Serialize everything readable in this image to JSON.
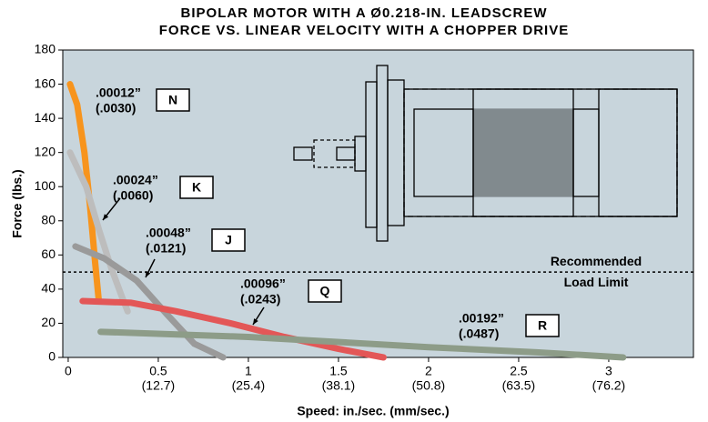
{
  "chart_data": {
    "type": "line",
    "title_lines": [
      "BIPOLAR MOTOR WITH A Ø0.218-IN. LEADSCREW",
      "FORCE VS. LINEAR VELOCITY WITH A CHOPPER DRIVE"
    ],
    "x_label": "Speed:  in./sec.  (mm/sec.)",
    "y_label": "Force (lbs.)",
    "xlim": [
      -0.03,
      3.47
    ],
    "ylim": [
      0,
      180
    ],
    "xticks": [
      0,
      0.5,
      1,
      1.5,
      2,
      2.5,
      3
    ],
    "xtick_mm_labels": [
      null,
      "(12.7)",
      "(25.4)",
      "(38.1)",
      "(50.8)",
      "(63.5)",
      "(76.2)"
    ],
    "yticks": [
      0,
      20,
      40,
      60,
      80,
      100,
      120,
      140,
      160,
      180
    ],
    "reference_line": {
      "value": 50,
      "label_lines": [
        "Recommended",
        "Load Limit"
      ]
    },
    "series": [
      {
        "name": "N",
        "label_lines": [
          ".00012”",
          "(.0030)"
        ],
        "color": "#f7941d",
        "x": [
          0.01,
          0.05,
          0.09,
          0.12,
          0.15,
          0.17
        ],
        "values": [
          160,
          148,
          120,
          90,
          55,
          33
        ]
      },
      {
        "name": "K",
        "label_lines": [
          ".00024”",
          "(.0060)"
        ],
        "color": "#bdbdbd",
        "x": [
          0.01,
          0.1,
          0.17,
          0.24,
          0.3,
          0.33
        ],
        "values": [
          120,
          100,
          75,
          52,
          35,
          27
        ]
      },
      {
        "name": "J",
        "label_lines": [
          ".00048”",
          "(.0121)"
        ],
        "color": "#9a9a9a",
        "x": [
          0.04,
          0.2,
          0.38,
          0.55,
          0.7,
          0.86
        ],
        "values": [
          65,
          58,
          45,
          25,
          8,
          0
        ]
      },
      {
        "name": "Q",
        "label_lines": [
          ".00096”",
          "(.0243)"
        ],
        "color": "#e35757",
        "x": [
          0.08,
          0.35,
          0.6,
          0.9,
          1.2,
          1.5,
          1.75
        ],
        "values": [
          33,
          32,
          27,
          20,
          12,
          5,
          0
        ]
      },
      {
        "name": "R",
        "label_lines": [
          ".00192”",
          "(.0487)"
        ],
        "color": "#8d9c88",
        "x": [
          0.18,
          1,
          2,
          2.6,
          3.08
        ],
        "values": [
          15,
          12,
          6,
          3,
          0
        ]
      }
    ]
  }
}
